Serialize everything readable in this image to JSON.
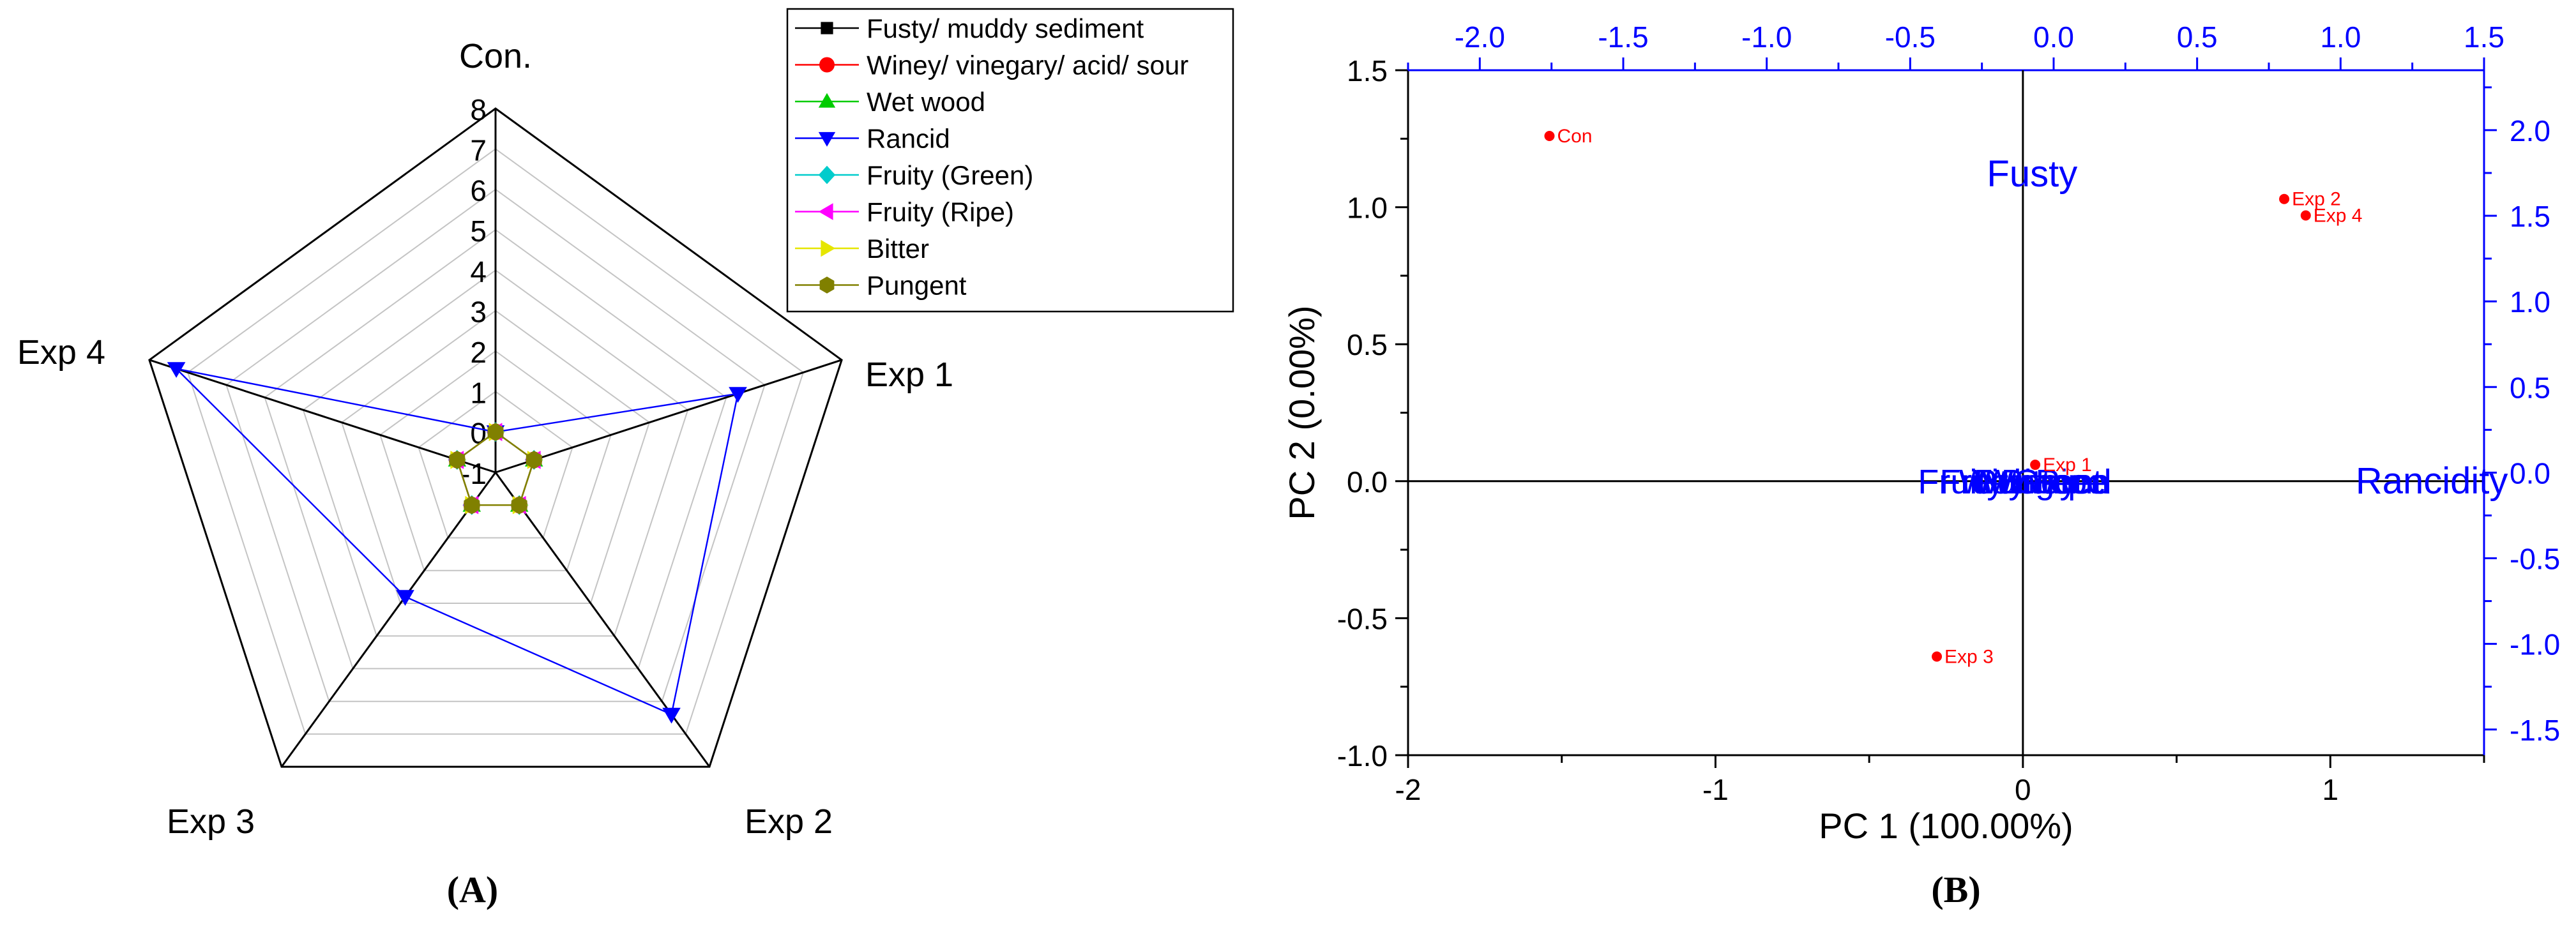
{
  "chart_data": [
    {
      "type": "radar",
      "panel_label": "(A)",
      "axes": [
        "Con.",
        "Exp 1",
        "Exp 2",
        "Exp 3",
        "Exp 4"
      ],
      "radial_range": [
        -1,
        8
      ],
      "radial_ticks": [
        "-1",
        "0",
        "1",
        "2",
        "3",
        "4",
        "5",
        "6",
        "7",
        "8"
      ],
      "grid": true,
      "legend_position": "top-right",
      "series": [
        {
          "name": "Fusty/ muddy sediment",
          "color": "#000000",
          "marker": "square",
          "values": [
            0,
            0,
            0,
            0,
            0
          ]
        },
        {
          "name": "Winey/ vinegary/ acid/ sour",
          "color": "#ff0000",
          "marker": "circle",
          "values": [
            0,
            0,
            0,
            0,
            0
          ]
        },
        {
          "name": "Wet wood",
          "color": "#00cc00",
          "marker": "triangle-up",
          "values": [
            0,
            0,
            0,
            0,
            0
          ]
        },
        {
          "name": "Rancid",
          "color": "#0000ff",
          "marker": "triangle-down",
          "values": [
            0,
            5.3,
            6.4,
            2.8,
            7.3
          ]
        },
        {
          "name": "Fruity (Green)",
          "color": "#00cccc",
          "marker": "diamond",
          "values": [
            0,
            0,
            0,
            0,
            0
          ]
        },
        {
          "name": "Fruity (Ripe)",
          "color": "#ff00ff",
          "marker": "triangle-left",
          "values": [
            0,
            0,
            0,
            0,
            0
          ]
        },
        {
          "name": "Bitter",
          "color": "#e6e600",
          "marker": "triangle-right",
          "values": [
            0,
            0,
            0,
            0,
            0
          ]
        },
        {
          "name": "Pungent",
          "color": "#808000",
          "marker": "hexagon",
          "values": [
            0,
            0,
            0,
            0,
            0
          ]
        }
      ]
    },
    {
      "type": "biplot",
      "panel_label": "(B)",
      "xlabel": "PC 1 (100.00%)",
      "ylabel": "PC 2 (0.00%)",
      "xlim": [
        -2,
        1.5
      ],
      "ylim": [
        -1,
        1.5
      ],
      "x_ticks": [
        "-2",
        "-1",
        "0",
        "1"
      ],
      "y_ticks": [
        "-1.0",
        "-0.5",
        "0.0",
        "0.5",
        "1.0",
        "1.5"
      ],
      "top_xlim": [
        -2.25,
        1.5
      ],
      "top_ticks": [
        "-2.0",
        "-1.5",
        "-1.0",
        "-0.5",
        "0.0",
        "0.5",
        "1.0",
        "1.5"
      ],
      "right_ylim": [
        -1.65,
        2.35
      ],
      "right_ticks": [
        "-1.5",
        "-1.0",
        "-0.5",
        "0.0",
        "0.5",
        "1.0",
        "1.5",
        "2.0"
      ],
      "score_color": "#ff0000",
      "loading_color": "#0000ff",
      "scores": [
        {
          "label": "Con",
          "x": -1.54,
          "y": 1.26
        },
        {
          "label": "Exp 2",
          "x": 0.85,
          "y": 1.03
        },
        {
          "label": "Exp 4",
          "x": 0.92,
          "y": 0.97
        },
        {
          "label": "Exp 1",
          "x": 0.04,
          "y": 0.06
        },
        {
          "label": "Exp 3",
          "x": -0.28,
          "y": -0.64
        }
      ],
      "loadings": [
        {
          "label": "Fusty",
          "x": 0.03,
          "y": 1.12
        },
        {
          "label": "Rancidity",
          "x": 1.33,
          "y": 0.0
        },
        {
          "label": "Fruity Green",
          "x": -0.03,
          "y": 0.0
        },
        {
          "label": "Fruity Ripe",
          "x": 0.0,
          "y": 0.0
        },
        {
          "label": "Winey",
          "x": 0.02,
          "y": 0.0
        },
        {
          "label": "Wet wood",
          "x": 0.04,
          "y": 0.0
        },
        {
          "label": "Bitter",
          "x": 0.06,
          "y": 0.0
        },
        {
          "label": "Pungent",
          "x": 0.05,
          "y": 0.0
        }
      ]
    }
  ]
}
